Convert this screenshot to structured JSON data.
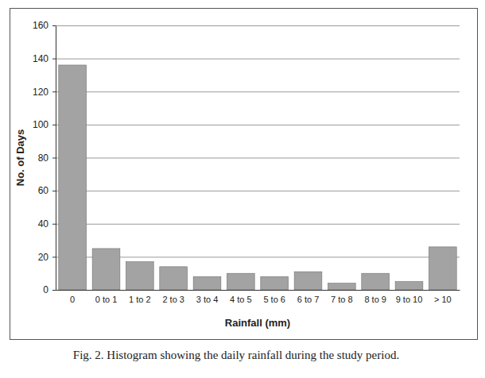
{
  "chart_data": {
    "type": "bar",
    "title": "Fig. 2. Histogram showing the daily rainfall during the study period.",
    "x_label": "Rainfall (mm)",
    "y_label": "No. of Days",
    "categories": [
      "0",
      "0 to 1",
      "1 to 2",
      "2 to 3",
      "3 to 4",
      "4 to 5",
      "5 to 6",
      "6 to 7",
      "7 to 8",
      "8 to 9",
      "9 to 10",
      "> 10"
    ],
    "values": [
      136,
      25,
      17,
      14,
      8,
      10,
      8,
      11,
      4,
      10,
      5,
      26
    ],
    "color": "#a3a3a3",
    "ylim": [
      0,
      160
    ],
    "yticks": [
      0,
      20,
      40,
      60,
      80,
      100,
      120,
      140,
      160
    ],
    "grid": true
  }
}
